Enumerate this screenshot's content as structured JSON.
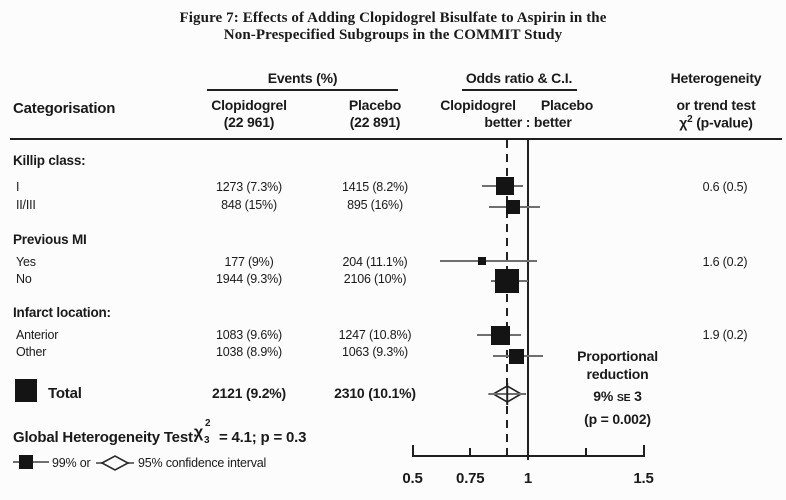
{
  "title": {
    "line1": "Figure 7: Effects of Adding Clopidogrel Bisulfate to Aspirin in the",
    "line2": "Non-Prespecified Subgroups in the COMMIT Study"
  },
  "colors": {
    "ink": "#1a1a1a",
    "ci_line": "#6f6f6f",
    "marker": "#141414",
    "background": "#fcfcfc"
  },
  "header": {
    "categorisation": "Categorisation",
    "events_pct": "Events (%)",
    "clopidogrel": "Clopidogrel",
    "clopidogrel_n": "(22 961)",
    "placebo": "Placebo",
    "placebo_n": "(22 891)",
    "or_ci": "Odds ratio & C.I.",
    "or_clopidogrel": "Clopidogrel",
    "or_placebo": "Placebo",
    "better": "better : better",
    "het_line1": "Heterogeneity",
    "het_line2": "or trend test",
    "chi": "χ",
    "chi_sup": "2",
    "pvalue": "(p-value)"
  },
  "chart_data": {
    "type": "forest",
    "x_axis": {
      "scale": "linear",
      "range": [
        0.5,
        1.5
      ],
      "ticks": [
        "0.5",
        "0.75",
        "1",
        "1.5"
      ],
      "tick_values": [
        0.5,
        0.75,
        1,
        1.5
      ],
      "minor_tick_values": [
        1.25
      ],
      "reference_line": 1.0,
      "overall_dashed_line": 0.91
    },
    "groups": [
      {
        "name": "Killip class:",
        "het_test": "0.6 (0.5)",
        "rows": [
          {
            "label": "I",
            "clopidogrel": "1273 (7.3%)",
            "placebo": "1415 (8.2%)",
            "or": 0.9,
            "ci_low": 0.8,
            "ci_high": 0.98
          },
          {
            "label": "II/III",
            "clopidogrel": "848 (15%)",
            "placebo": "895 (16%)",
            "or": 0.935,
            "ci_low": 0.83,
            "ci_high": 1.05
          }
        ]
      },
      {
        "name": "Previous MI",
        "het_test": "1.6 (0.2)",
        "rows": [
          {
            "label": "Yes",
            "clopidogrel": "177 (9%)",
            "placebo": "204 (11.1%)",
            "or": 0.8,
            "ci_low": 0.62,
            "ci_high": 1.04
          },
          {
            "label": "No",
            "clopidogrel": "1944 (9.3%)",
            "placebo": "2106 (10%)",
            "or": 0.91,
            "ci_low": 0.84,
            "ci_high": 1.0
          }
        ]
      },
      {
        "name": "Infarct location:",
        "het_test": "1.9 (0.2)",
        "rows": [
          {
            "label": "Anterior",
            "clopidogrel": "1083 (9.6%)",
            "placebo": "1247 (10.8%)",
            "or": 0.88,
            "ci_low": 0.78,
            "ci_high": 0.97
          },
          {
            "label": "Other",
            "clopidogrel": "1038 (8.9%)",
            "placebo": "1063 (9.3%)",
            "or": 0.95,
            "ci_low": 0.85,
            "ci_high": 1.065
          }
        ]
      }
    ],
    "total": {
      "label": "Total",
      "clopidogrel": "2121 (9.2%)",
      "placebo": "2310 (10.1%)",
      "or": 0.91,
      "ci_low": 0.85,
      "ci_high": 0.97,
      "marker": "diamond",
      "ci_level": "95%"
    },
    "proportional_reduction": {
      "line1": "Proportional",
      "line2": "reduction",
      "value_pre": "9%",
      "se_label": "SE",
      "value_post": "3",
      "p": "(p = 0.002)"
    }
  },
  "footer": {
    "global_het_label": "Global Heterogeneity Test:",
    "chi": "χ",
    "chi_sup": "2",
    "chi_sub": "3",
    "global_het_value": "= 4.1; p = 0.3",
    "legend_99": "99% or",
    "legend_95": "95% confidence interval"
  }
}
